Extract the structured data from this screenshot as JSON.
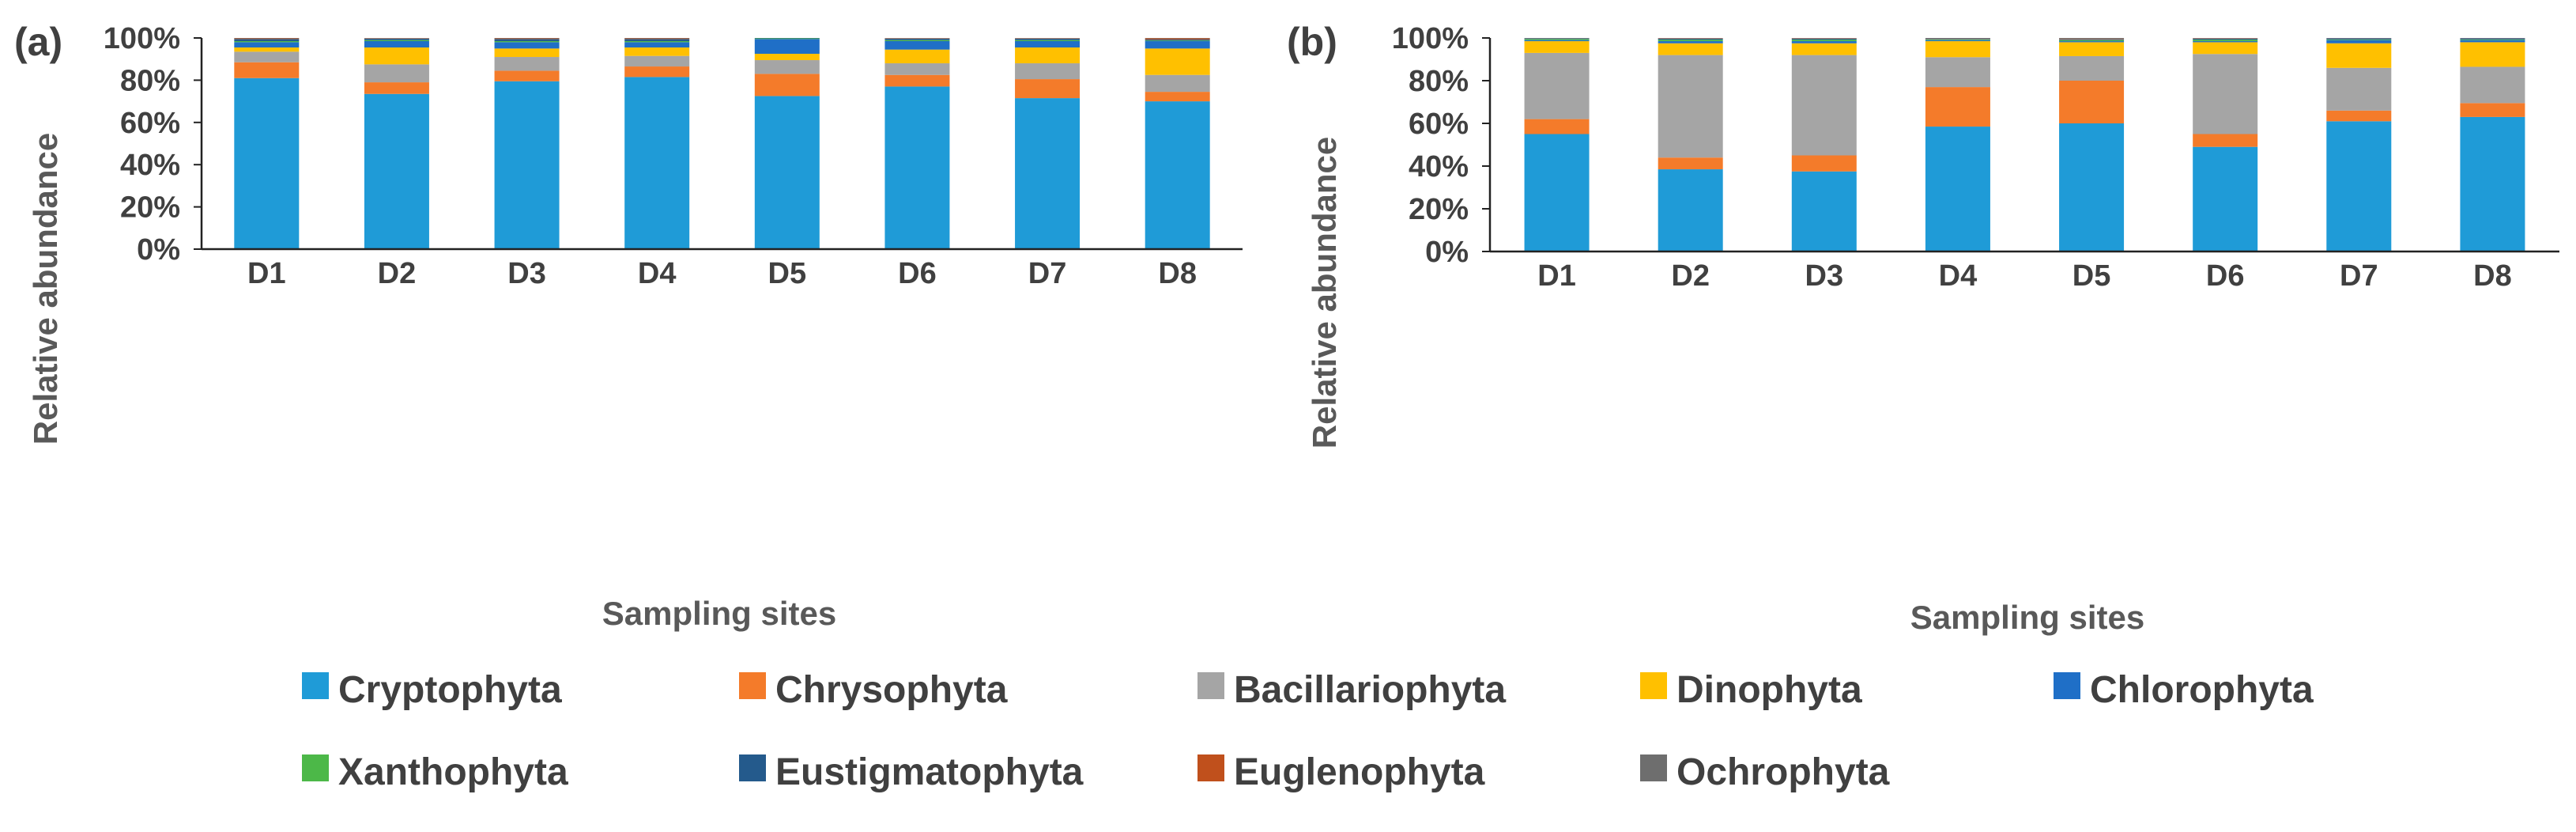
{
  "legend": [
    "Cryptophyta",
    "Chrysophyta",
    "Bacillariophyta",
    "Dinophyta",
    "Chlorophyta",
    "Xanthophyta",
    "Eustigmatophyta",
    "Euglenophyta",
    "Ochrophyta"
  ],
  "colors": {
    "Cryptophyta": "#1f9bd7",
    "Chrysophyta": "#f47b2a",
    "Bacillariophyta": "#a5a5a5",
    "Dinophyta": "#ffc000",
    "Chlorophyta": "#1f6fc7",
    "Xanthophyta": "#4cb848",
    "Eustigmatophyta": "#245a8c",
    "Euglenophyta": "#c0501c",
    "Ochrophyta": "#6e6e6e"
  },
  "chart_data": [
    {
      "type": "bar",
      "stacked": true,
      "panel": "(a)",
      "categories": [
        "D1",
        "D2",
        "D3",
        "D4",
        "D5",
        "D6",
        "D7",
        "D8"
      ],
      "xlabel": "Sampling sites",
      "ylabel": "Relative abundance",
      "ylim": [
        0,
        100
      ],
      "yticks": [
        "0%",
        "20%",
        "40%",
        "60%",
        "80%",
        "100%"
      ],
      "series": [
        {
          "name": "Cryptophyta",
          "values": [
            81,
            73.5,
            79.5,
            81.5,
            72.5,
            77,
            71.5,
            70
          ]
        },
        {
          "name": "Chrysophyta",
          "values": [
            7.5,
            5.5,
            5,
            5,
            10.5,
            5.5,
            9,
            4.5
          ]
        },
        {
          "name": "Bacillariophyta",
          "values": [
            5,
            8.5,
            6.5,
            5,
            6.5,
            5.5,
            7.5,
            8
          ]
        },
        {
          "name": "Dinophyta",
          "values": [
            2,
            8,
            4,
            4,
            3,
            6.5,
            7.5,
            12.5
          ]
        },
        {
          "name": "Chlorophyta",
          "values": [
            2.5,
            3,
            3,
            2.5,
            7,
            4,
            3,
            3.5
          ]
        },
        {
          "name": "Xanthophyta",
          "values": [
            0.5,
            0.5,
            0.5,
            0.5,
            0.3,
            0.5,
            0.5,
            0.3
          ]
        },
        {
          "name": "Eustigmatophyta",
          "values": [
            1,
            0.7,
            1,
            1,
            0.2,
            0.7,
            0.7,
            0.5
          ]
        },
        {
          "name": "Euglenophyta",
          "values": [
            0.3,
            0.2,
            0.3,
            0.3,
            0,
            0.2,
            0.2,
            0.5
          ]
        },
        {
          "name": "Ochrophyta",
          "values": [
            0.2,
            0.1,
            0.2,
            0.2,
            0,
            0.1,
            0.1,
            0.2
          ]
        }
      ]
    },
    {
      "type": "bar",
      "stacked": true,
      "panel": "(b)",
      "categories": [
        "D1",
        "D2",
        "D3",
        "D4",
        "D5",
        "D6",
        "D7",
        "D8"
      ],
      "xlabel": "Sampling sites",
      "ylabel": "Relative abundance",
      "ylim": [
        0,
        100
      ],
      "yticks": [
        "0%",
        "20%",
        "40%",
        "60%",
        "80%",
        "100%"
      ],
      "series": [
        {
          "name": "Cryptophyta",
          "values": [
            55,
            38.5,
            37.5,
            58.5,
            60,
            49,
            61,
            63
          ]
        },
        {
          "name": "Chrysophyta",
          "values": [
            7,
            5.5,
            7.5,
            18.5,
            20,
            6,
            5,
            6.5
          ]
        },
        {
          "name": "Bacillariophyta",
          "values": [
            31,
            48,
            47,
            14,
            11.5,
            37.5,
            20,
            17
          ]
        },
        {
          "name": "Dinophyta",
          "values": [
            5.5,
            5.5,
            5.5,
            7.5,
            6.5,
            5.5,
            11.5,
            11.5
          ]
        },
        {
          "name": "Chlorophyta",
          "values": [
            0.5,
            1,
            1,
            0.5,
            0.5,
            0.5,
            1.5,
            1
          ]
        },
        {
          "name": "Xanthophyta",
          "values": [
            0.5,
            0.7,
            0.7,
            0.3,
            0.5,
            0.7,
            0.3,
            0.3
          ]
        },
        {
          "name": "Eustigmatophyta",
          "values": [
            0.3,
            0.5,
            0.5,
            0.2,
            0.3,
            0.5,
            0.5,
            0.5
          ]
        },
        {
          "name": "Euglenophyta",
          "values": [
            0.1,
            0.2,
            0.2,
            0.1,
            0.2,
            0.2,
            0.1,
            0.1
          ]
        },
        {
          "name": "Ochrophyta",
          "values": [
            0.1,
            0.1,
            0.1,
            0.4,
            0.5,
            0.1,
            0.1,
            0.1
          ]
        }
      ]
    }
  ]
}
